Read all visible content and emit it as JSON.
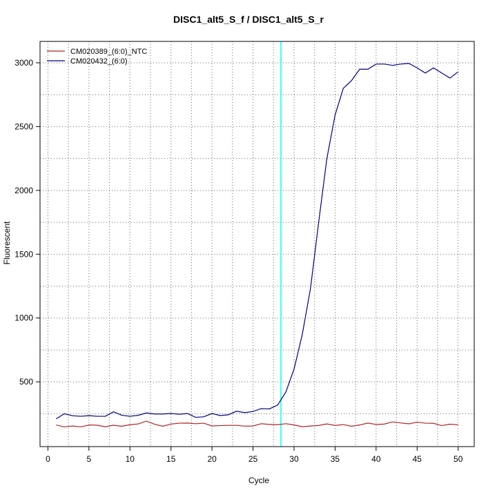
{
  "chart_data": {
    "type": "line",
    "title": "DISC1_alt5_S_f / DISC1_alt5_S_r",
    "xlabel": "Cycle",
    "ylabel": "Fluorescent",
    "xlim": [
      1,
      50
    ],
    "ylim": [
      110,
      3050
    ],
    "x_ticks": [
      0,
      5,
      10,
      15,
      20,
      25,
      30,
      35,
      40,
      45,
      50
    ],
    "y_ticks": [
      500,
      1000,
      1500,
      2000,
      2500,
      3000
    ],
    "grid": true,
    "legend_position": "top-left",
    "threshold_cycle": 28.4,
    "threshold_color": "#00ffff",
    "x": [
      1,
      2,
      3,
      4,
      5,
      6,
      7,
      8,
      9,
      10,
      11,
      12,
      13,
      14,
      15,
      16,
      17,
      18,
      19,
      20,
      21,
      22,
      23,
      24,
      25,
      26,
      27,
      28,
      29,
      30,
      31,
      32,
      33,
      34,
      35,
      36,
      37,
      38,
      39,
      40,
      41,
      42,
      43,
      44,
      45,
      46,
      47,
      48,
      49,
      50
    ],
    "series": [
      {
        "name": "CM020389_(6:0)_NTC",
        "color": "#b22222",
        "values": [
          162,
          147,
          154,
          147,
          162,
          160,
          148,
          160,
          152,
          164,
          170,
          192,
          168,
          152,
          169,
          176,
          177,
          172,
          176,
          154,
          157,
          159,
          159,
          153,
          154,
          172,
          166,
          164,
          172,
          162,
          148,
          154,
          158,
          170,
          158,
          165,
          152,
          162,
          177,
          166,
          169,
          186,
          178,
          171,
          184,
          176,
          175,
          157,
          168,
          163
        ]
      },
      {
        "name": "CM020432_(6:0)",
        "color": "#000080",
        "values": [
          210,
          250,
          234,
          230,
          235,
          230,
          230,
          265,
          238,
          230,
          238,
          256,
          248,
          248,
          252,
          246,
          252,
          222,
          226,
          252,
          236,
          242,
          270,
          258,
          268,
          290,
          288,
          318,
          420,
          600,
          870,
          1230,
          1750,
          2250,
          2590,
          2800,
          2860,
          2950,
          2950,
          2990,
          2990,
          2980,
          2990,
          2995,
          2960,
          2920,
          2960,
          2920,
          2880,
          2930
        ]
      }
    ]
  }
}
